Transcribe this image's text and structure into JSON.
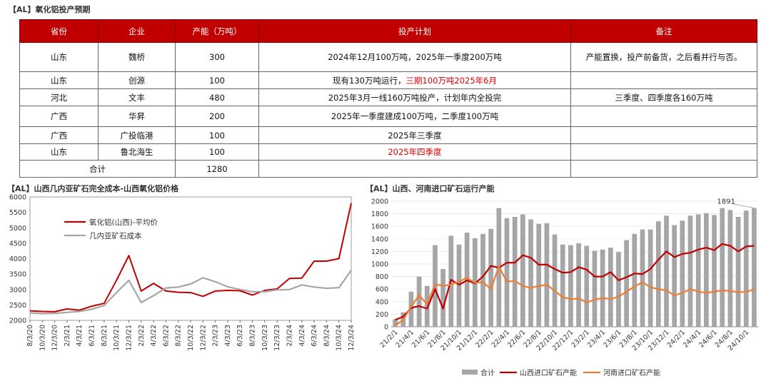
{
  "table": {
    "title": "【AL】氧化铝投产预期",
    "headers": [
      "省份",
      "企业",
      "产能（万吨）",
      "投产计划",
      "备注"
    ],
    "rows": [
      {
        "province": "山东",
        "company": "魏桥",
        "capacity": "300",
        "plan": "2024年12月100万吨，2025年一季度200万吨",
        "plan_red": "",
        "note": "产能置换，投产前备货，之后看并行与否。"
      },
      {
        "province": "山东",
        "company": "创源",
        "capacity": "100",
        "plan": "现有130万吨运行，",
        "plan_red": "三期100万吨2025年6月",
        "note": ""
      },
      {
        "province": "河北",
        "company": "文丰",
        "capacity": "480",
        "plan": "2025年3月一线160万吨投产，计划年内全投完",
        "plan_red": "",
        "note": "三季度、四季度各160万吨"
      },
      {
        "province": "广西",
        "company": "华昇",
        "capacity": "200",
        "plan": "2025年一季度建成100万吨，二季度100万吨",
        "plan_red": "",
        "note": ""
      },
      {
        "province": "广西",
        "company": "广投临港",
        "capacity": "100",
        "plan": "2025年三季度",
        "plan_red": "",
        "note": ""
      },
      {
        "province": "山东",
        "company": "鲁北海生",
        "capacity": "100",
        "plan": "",
        "plan_red": "2025年四季度",
        "note": ""
      }
    ],
    "total_label": "合计",
    "total_value": "1280"
  },
  "chart_data": [
    {
      "type": "line",
      "title": "【AL】山西几内亚矿石完全成本-山西氧化铝价格",
      "x": [
        "8/3/20",
        "10/3/20",
        "12/3/20",
        "2/3/21",
        "4/3/21",
        "6/3/21",
        "8/3/21",
        "10/3/21",
        "12/3/21",
        "2/3/22",
        "4/3/22",
        "6/3/22",
        "8/3/22",
        "10/3/22",
        "12/3/22",
        "2/3/23",
        "4/3/23",
        "6/3/23",
        "8/3/23",
        "10/3/23",
        "12/3/23",
        "2/3/24",
        "4/3/24",
        "6/3/24",
        "8/3/24",
        "10/3/24",
        "12/3/24"
      ],
      "ylim": [
        2000,
        6000
      ],
      "yticks": [
        2000,
        2500,
        3000,
        3500,
        4000,
        4500,
        5000,
        5500,
        6000
      ],
      "legend_position": "upper-left",
      "series": [
        {
          "name": "氧化铝(山西)-平均价",
          "color": "#c00000",
          "values": [
            2310,
            2290,
            2280,
            2370,
            2330,
            2460,
            2550,
            3300,
            4100,
            2950,
            3200,
            2950,
            2910,
            2900,
            2780,
            2950,
            2970,
            2960,
            2820,
            2970,
            3020,
            3360,
            3370,
            3920,
            3920,
            4000,
            5800
          ]
        },
        {
          "name": "几内亚矿石成本",
          "color": "#a6a6a6",
          "values": [
            2240,
            2220,
            2230,
            2260,
            2290,
            2360,
            2480,
            2900,
            3300,
            2580,
            2800,
            3050,
            3080,
            3180,
            3380,
            3250,
            3090,
            3000,
            2930,
            2930,
            2990,
            3000,
            3150,
            3080,
            3040,
            3060,
            3620
          ]
        }
      ]
    },
    {
      "type": "bar+line",
      "title": "【AL】山西、河南进口矿石运行产能",
      "x": [
        "21/2/1",
        "21/3/1",
        "21/4/1",
        "21/5/1",
        "21/6/1",
        "21/7/1",
        "21/8/1",
        "21/9/1",
        "21/10/1",
        "21/11/1",
        "21/12/1",
        "22/1/1",
        "22/2/1",
        "22/3/1",
        "22/4/1",
        "22/5/1",
        "22/6/1",
        "22/7/1",
        "22/8/1",
        "22/9/1",
        "22/10/1",
        "22/11/1",
        "22/12/1",
        "23/1/1",
        "23/2/1",
        "23/3/1",
        "23/4/1",
        "23/5/1",
        "23/6/1",
        "23/7/1",
        "23/8/1",
        "23/9/1",
        "23/10/1",
        "23/11/1",
        "23/12/1",
        "24/1/1",
        "24/2/1",
        "24/3/1",
        "24/4/1",
        "24/5/1",
        "24/6/1",
        "24/7/1",
        "24/8/1",
        "24/9/1",
        "24/10/1",
        "24/11/1"
      ],
      "x_tick_labels": [
        "21/2/1",
        "21/4/1",
        "21/6/1",
        "21/8/1",
        "21/10/1",
        "21/12/1",
        "22/2/1",
        "22/4/1",
        "22/6/1",
        "22/8/1",
        "22/10/1",
        "22/12/1",
        "23/2/1",
        "23/4/1",
        "23/6/1",
        "23/8/1",
        "23/10/1",
        "23/12/1",
        "24/2/1",
        "24/4/1",
        "24/6/1",
        "24/8/1",
        "24/10/1"
      ],
      "ylim": [
        0,
        2000
      ],
      "yticks": [
        0,
        200,
        400,
        600,
        800,
        1000,
        1200,
        1400,
        1600,
        1800,
        2000
      ],
      "annotation": {
        "text": "1891",
        "index": 45
      },
      "legend_position": "bottom",
      "series": [
        {
          "name": "合计",
          "type": "bar",
          "color": "#a6a6a6",
          "values": [
            120,
            230,
            560,
            800,
            650,
            1300,
            920,
            1450,
            1310,
            1500,
            1410,
            1480,
            1560,
            1890,
            1730,
            1750,
            1790,
            1710,
            1640,
            1650,
            1470,
            1310,
            1300,
            1330,
            1290,
            1210,
            1230,
            1260,
            1190,
            1380,
            1480,
            1550,
            1550,
            1680,
            1770,
            1620,
            1690,
            1770,
            1790,
            1810,
            1780,
            1890,
            1860,
            1750,
            1850,
            1891
          ]
        },
        {
          "name": "山西进口矿石产能",
          "type": "line",
          "color": "#c00000",
          "values": [
            110,
            160,
            300,
            330,
            290,
            600,
            290,
            750,
            670,
            740,
            690,
            800,
            970,
            940,
            1020,
            1020,
            1140,
            1100,
            990,
            990,
            920,
            860,
            870,
            950,
            910,
            800,
            800,
            870,
            740,
            790,
            850,
            840,
            920,
            1070,
            1200,
            1110,
            1160,
            1180,
            1230,
            1260,
            1220,
            1320,
            1290,
            1200,
            1280,
            1290
          ]
        },
        {
          "name": "河南进口矿石产能",
          "type": "line",
          "color": "#ed7d31",
          "values": [
            20,
            110,
            320,
            500,
            360,
            680,
            650,
            670,
            720,
            780,
            700,
            710,
            600,
            960,
            720,
            730,
            650,
            620,
            650,
            670,
            570,
            470,
            440,
            450,
            390,
            430,
            460,
            440,
            480,
            560,
            640,
            710,
            630,
            600,
            580,
            500,
            540,
            600,
            560,
            540,
            560,
            580,
            570,
            550,
            560,
            590
          ]
        }
      ]
    }
  ]
}
